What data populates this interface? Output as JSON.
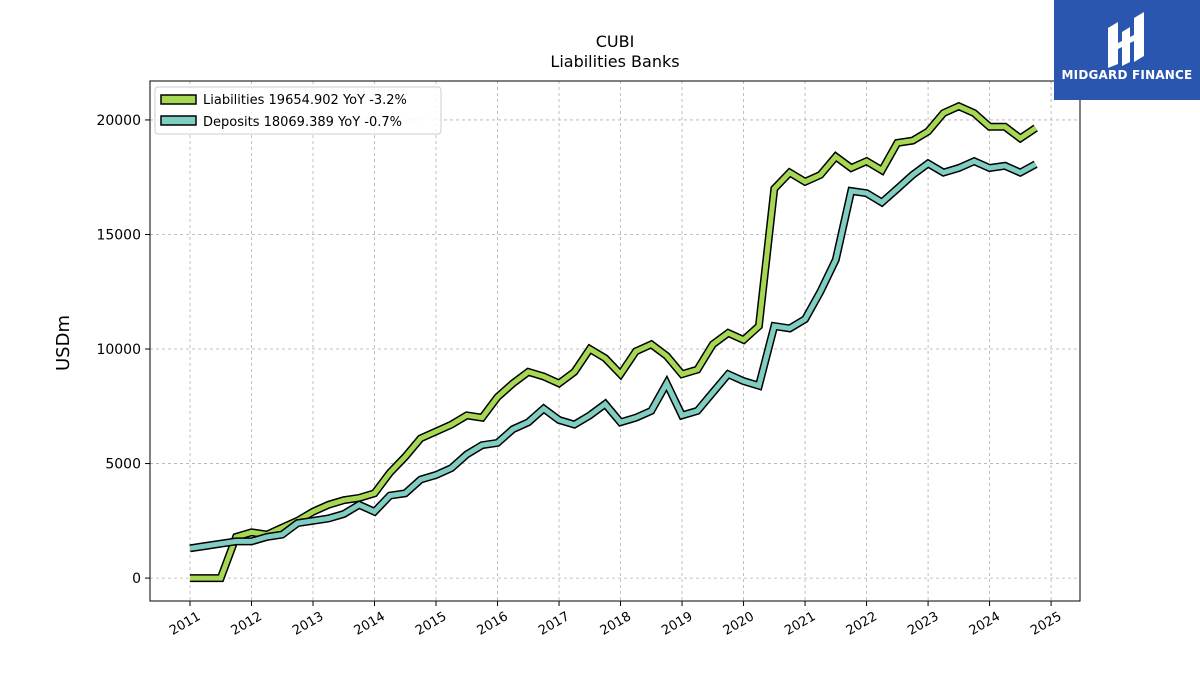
{
  "title_line1": "CUBI",
  "title_line2": "Liabilities Banks",
  "brand": {
    "name": "MIDGARD FINANCE",
    "color": "#2a56b0"
  },
  "chart_data": {
    "type": "line",
    "title": "CUBI Liabilities Banks",
    "xlabel": "",
    "ylabel": "USDm",
    "xlim": [
      2010.35,
      2025.47
    ],
    "ylim": [
      -1000,
      21700
    ],
    "xticks": [
      "2011",
      "2012",
      "2013",
      "2014",
      "2015",
      "2016",
      "2017",
      "2018",
      "2019",
      "2020",
      "2021",
      "2022",
      "2023",
      "2024",
      "2025"
    ],
    "yticks": [
      0,
      5000,
      10000,
      15000,
      20000
    ],
    "grid": true,
    "legend_position": "top-left",
    "series": [
      {
        "name": "Liabilities",
        "legend_label": "Liabilities  19654.902 YoY -3.2%",
        "color": "#a6d854",
        "x": [
          2011.0,
          2011.25,
          2011.5,
          2011.75,
          2012.0,
          2012.25,
          2012.5,
          2012.75,
          2013.0,
          2013.25,
          2013.5,
          2013.75,
          2014.0,
          2014.25,
          2014.5,
          2014.75,
          2015.0,
          2015.25,
          2015.5,
          2015.75,
          2016.0,
          2016.25,
          2016.5,
          2016.75,
          2017.0,
          2017.25,
          2017.5,
          2017.75,
          2018.0,
          2018.25,
          2018.5,
          2018.75,
          2019.0,
          2019.25,
          2019.5,
          2019.75,
          2020.0,
          2020.25,
          2020.5,
          2020.75,
          2021.0,
          2021.25,
          2021.5,
          2021.75,
          2022.0,
          2022.25,
          2022.5,
          2022.75,
          2023.0,
          2023.25,
          2023.5,
          2023.75,
          2024.0,
          2024.25,
          2024.5,
          2024.75
        ],
        "y": [
          0,
          0,
          0,
          1800,
          2000,
          1900,
          2200,
          2500,
          2900,
          3200,
          3400,
          3500,
          3700,
          4600,
          5300,
          6100,
          6400,
          6700,
          7100,
          7000,
          7900,
          8500,
          9000,
          8800,
          8500,
          9000,
          10000,
          9600,
          8900,
          9900,
          10200,
          9700,
          8900,
          9100,
          10200,
          10700,
          10400,
          11000,
          17000,
          17700,
          17300,
          17600,
          18400,
          17900,
          18200,
          17800,
          19000,
          19100,
          19500,
          20300,
          20600,
          20300,
          19700,
          19700,
          19200,
          19650
        ]
      },
      {
        "name": "Deposits",
        "legend_label": "Deposits  18069.389 YoY -0.7%",
        "color": "#80cdc1",
        "x": [
          2011.0,
          2011.25,
          2011.5,
          2011.75,
          2012.0,
          2012.25,
          2012.5,
          2012.75,
          2013.0,
          2013.25,
          2013.5,
          2013.75,
          2014.0,
          2014.25,
          2014.5,
          2014.75,
          2015.0,
          2015.25,
          2015.5,
          2015.75,
          2016.0,
          2016.25,
          2016.5,
          2016.75,
          2017.0,
          2017.25,
          2017.5,
          2017.75,
          2018.0,
          2018.25,
          2018.5,
          2018.75,
          2019.0,
          2019.25,
          2019.5,
          2019.75,
          2020.0,
          2020.25,
          2020.5,
          2020.75,
          2021.0,
          2021.25,
          2021.5,
          2021.75,
          2022.0,
          2022.25,
          2022.5,
          2022.75,
          2023.0,
          2023.25,
          2023.5,
          2023.75,
          2024.0,
          2024.25,
          2024.5,
          2024.75
        ],
        "y": [
          1300,
          1400,
          1500,
          1600,
          1600,
          1800,
          1900,
          2400,
          2500,
          2600,
          2800,
          3200,
          2900,
          3600,
          3700,
          4300,
          4500,
          4800,
          5400,
          5800,
          5900,
          6500,
          6800,
          7400,
          6900,
          6700,
          7100,
          7600,
          6800,
          7000,
          7300,
          8500,
          7100,
          7300,
          8100,
          8900,
          8600,
          8400,
          11000,
          10900,
          11300,
          12500,
          13900,
          16900,
          16800,
          16400,
          17000,
          17600,
          18100,
          17700,
          17900,
          18200,
          17900,
          18000,
          17700,
          18070
        ]
      }
    ]
  }
}
